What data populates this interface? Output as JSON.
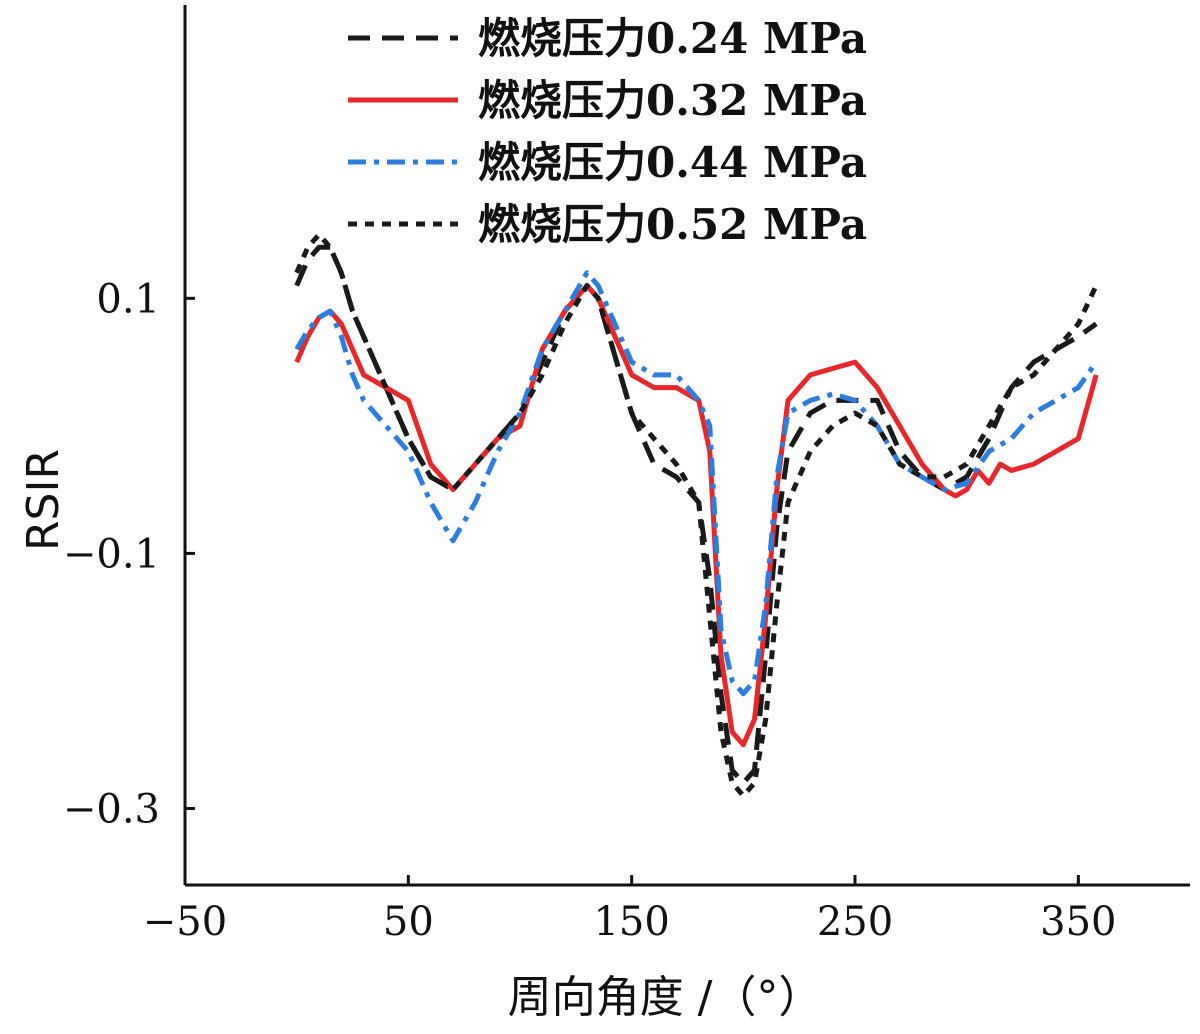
{
  "chart_data": {
    "type": "line",
    "title": "",
    "xlabel": "周向角度 /（°）",
    "ylabel": "RSIR",
    "xlim": [
      -50,
      400
    ],
    "ylim": [
      -0.36,
      0.33
    ],
    "xticks": [
      -50,
      50,
      150,
      250,
      350
    ],
    "xtick_labels": [
      "−50",
      "50",
      "150",
      "250",
      "350"
    ],
    "yticks": [
      0.1,
      -0.1,
      -0.3
    ],
    "ytick_labels": [
      "0.1",
      "−0.1",
      "−0.3"
    ],
    "grid": false,
    "legend_position": "top-right",
    "series": [
      {
        "name": "燃烧压力0.24 MPa",
        "color": "#1a1a1a",
        "dash": "long-dash",
        "x": [
          0,
          5,
          10,
          15,
          20,
          25,
          30,
          40,
          50,
          60,
          70,
          80,
          90,
          100,
          110,
          120,
          130,
          135,
          140,
          150,
          160,
          170,
          180,
          185,
          190,
          195,
          200,
          205,
          210,
          215,
          220,
          230,
          240,
          250,
          260,
          270,
          280,
          290,
          300,
          310,
          320,
          330,
          340,
          350,
          358
        ],
        "y": [
          0.11,
          0.13,
          0.14,
          0.14,
          0.12,
          0.09,
          0.07,
          0.03,
          -0.01,
          -0.04,
          -0.05,
          -0.03,
          -0.01,
          0.01,
          0.05,
          0.09,
          0.11,
          0.1,
          0.07,
          0.01,
          -0.03,
          -0.04,
          -0.06,
          -0.12,
          -0.21,
          -0.27,
          -0.28,
          -0.27,
          -0.18,
          -0.08,
          -0.02,
          0.01,
          0.02,
          0.02,
          0.02,
          -0.02,
          -0.04,
          -0.05,
          -0.04,
          -0.01,
          0.03,
          0.05,
          0.06,
          0.07,
          0.08
        ]
      },
      {
        "name": "燃烧压力0.32 MPa",
        "color": "#e8272a",
        "dash": "solid",
        "x": [
          0,
          5,
          10,
          15,
          20,
          25,
          30,
          40,
          50,
          60,
          70,
          80,
          90,
          100,
          110,
          120,
          130,
          135,
          140,
          150,
          160,
          170,
          180,
          185,
          190,
          195,
          200,
          205,
          210,
          215,
          220,
          230,
          240,
          250,
          260,
          270,
          280,
          290,
          295,
          300,
          305,
          310,
          315,
          320,
          330,
          340,
          350,
          358
        ],
        "y": [
          0.05,
          0.07,
          0.085,
          0.09,
          0.08,
          0.06,
          0.04,
          0.03,
          0.02,
          -0.03,
          -0.05,
          -0.03,
          -0.01,
          0.0,
          0.06,
          0.09,
          0.11,
          0.1,
          0.08,
          0.04,
          0.03,
          0.03,
          0.02,
          -0.02,
          -0.18,
          -0.24,
          -0.25,
          -0.23,
          -0.15,
          -0.05,
          0.02,
          0.04,
          0.045,
          0.05,
          0.03,
          0.0,
          -0.03,
          -0.05,
          -0.055,
          -0.05,
          -0.035,
          -0.045,
          -0.03,
          -0.035,
          -0.03,
          -0.02,
          -0.01,
          0.04
        ]
      },
      {
        "name": "燃烧压力0.44 MPa",
        "color": "#2c7de0",
        "dash": "dash-dot",
        "x": [
          0,
          5,
          10,
          15,
          20,
          25,
          30,
          40,
          50,
          60,
          70,
          80,
          90,
          100,
          110,
          120,
          130,
          135,
          140,
          150,
          160,
          170,
          180,
          185,
          190,
          195,
          200,
          205,
          210,
          215,
          220,
          230,
          240,
          250,
          260,
          270,
          280,
          290,
          300,
          310,
          320,
          330,
          340,
          350,
          358
        ],
        "y": [
          0.06,
          0.075,
          0.085,
          0.09,
          0.07,
          0.04,
          0.02,
          0.0,
          -0.02,
          -0.06,
          -0.09,
          -0.06,
          -0.02,
          0.01,
          0.06,
          0.09,
          0.12,
          0.11,
          0.09,
          0.05,
          0.04,
          0.04,
          0.02,
          0.0,
          -0.16,
          -0.2,
          -0.21,
          -0.2,
          -0.14,
          -0.04,
          0.01,
          0.02,
          0.025,
          0.02,
          0.0,
          -0.03,
          -0.04,
          -0.05,
          -0.045,
          -0.02,
          -0.01,
          0.01,
          0.02,
          0.03,
          0.05
        ]
      },
      {
        "name": "燃烧压力0.52 MPa",
        "color": "#1a1a1a",
        "dash": "short-dash",
        "x": [
          0,
          5,
          10,
          15,
          20,
          25,
          30,
          40,
          50,
          60,
          70,
          80,
          90,
          100,
          110,
          120,
          130,
          135,
          140,
          150,
          160,
          170,
          180,
          185,
          190,
          195,
          200,
          205,
          210,
          215,
          220,
          230,
          240,
          250,
          260,
          270,
          280,
          290,
          300,
          310,
          320,
          330,
          340,
          350,
          358
        ],
        "y": [
          0.12,
          0.14,
          0.15,
          0.14,
          0.12,
          0.09,
          0.07,
          0.03,
          -0.01,
          -0.04,
          -0.05,
          -0.03,
          -0.01,
          0.01,
          0.04,
          0.08,
          0.11,
          0.1,
          0.07,
          0.01,
          -0.01,
          -0.03,
          -0.06,
          -0.15,
          -0.24,
          -0.28,
          -0.29,
          -0.28,
          -0.23,
          -0.14,
          -0.06,
          -0.02,
          0.0,
          0.01,
          0.0,
          -0.03,
          -0.04,
          -0.04,
          -0.03,
          0.0,
          0.03,
          0.04,
          0.06,
          0.08,
          0.11
        ]
      }
    ]
  }
}
